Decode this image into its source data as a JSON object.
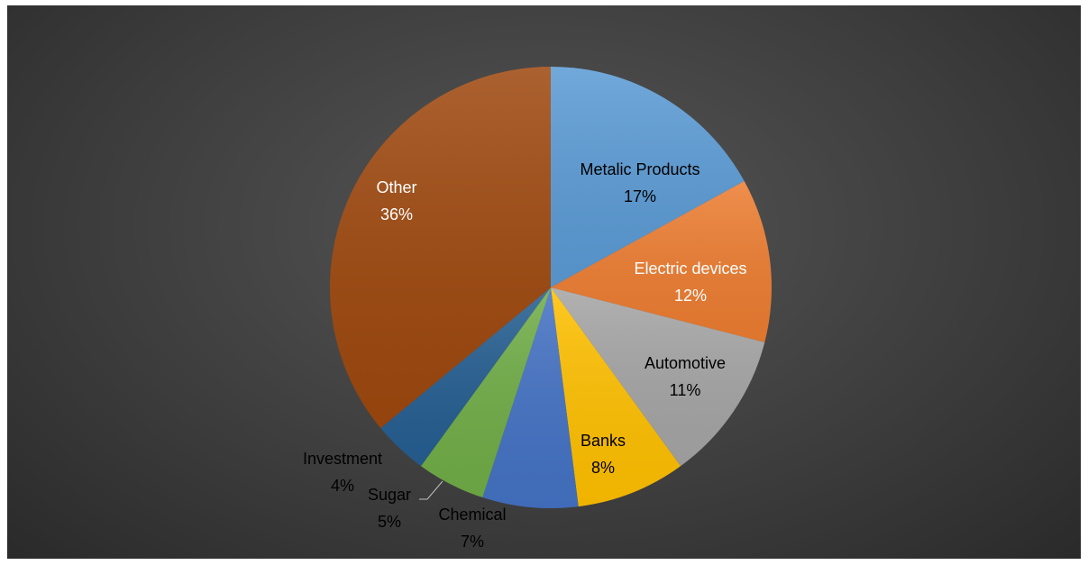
{
  "chart_data": {
    "type": "pie",
    "title": "",
    "legend": "none",
    "slices": [
      {
        "label": "Metalic Products",
        "value": 17,
        "display": "17%",
        "color": "#5b9bd5"
      },
      {
        "label": "Electric devices",
        "value": 12,
        "display": "12%",
        "color": "#ed7d31"
      },
      {
        "label": "Automotive",
        "value": 11,
        "display": "11%",
        "color": "#a5a5a5"
      },
      {
        "label": "Banks",
        "value": 8,
        "display": "8%",
        "color": "#ffc000"
      },
      {
        "label": "Chemical",
        "value": 7,
        "display": "7%",
        "color": "#4472c4"
      },
      {
        "label": "Sugar",
        "value": 5,
        "display": "5%",
        "color": "#70ad47"
      },
      {
        "label": "Investment",
        "value": 4,
        "display": "4%",
        "color": "#255e91"
      },
      {
        "label": "Other",
        "value": 36,
        "display": "36%",
        "color": "#9e480e"
      }
    ]
  }
}
